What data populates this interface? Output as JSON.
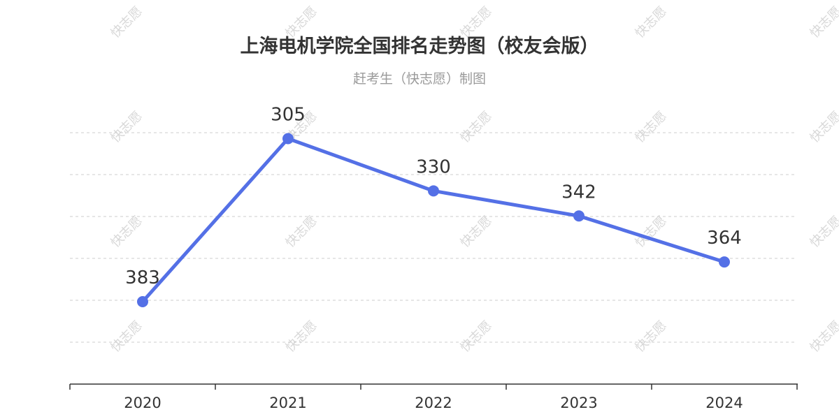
{
  "title": "上海电机学院全国排名走势图（校友会版）",
  "subtitle": "赶考生（快志愿）制图",
  "watermark": "快志愿",
  "colors": {
    "line": "#5470e6",
    "grid": "#cccccc",
    "axis": "#333333",
    "text": "#333333"
  },
  "chart_data": {
    "type": "line",
    "title": "上海电机学院全国排名走势图（校友会版）",
    "subtitle": "赶考生（快志愿）制图",
    "categories": [
      "2020",
      "2021",
      "2022",
      "2023",
      "2024"
    ],
    "series": [
      {
        "values": [
          383,
          305,
          330,
          342,
          364
        ]
      }
    ],
    "y_inverted": true,
    "ylim": [
      280,
      400
    ],
    "grid": true,
    "data_labels": [
      "383",
      "305",
      "330",
      "342",
      "364"
    ]
  }
}
